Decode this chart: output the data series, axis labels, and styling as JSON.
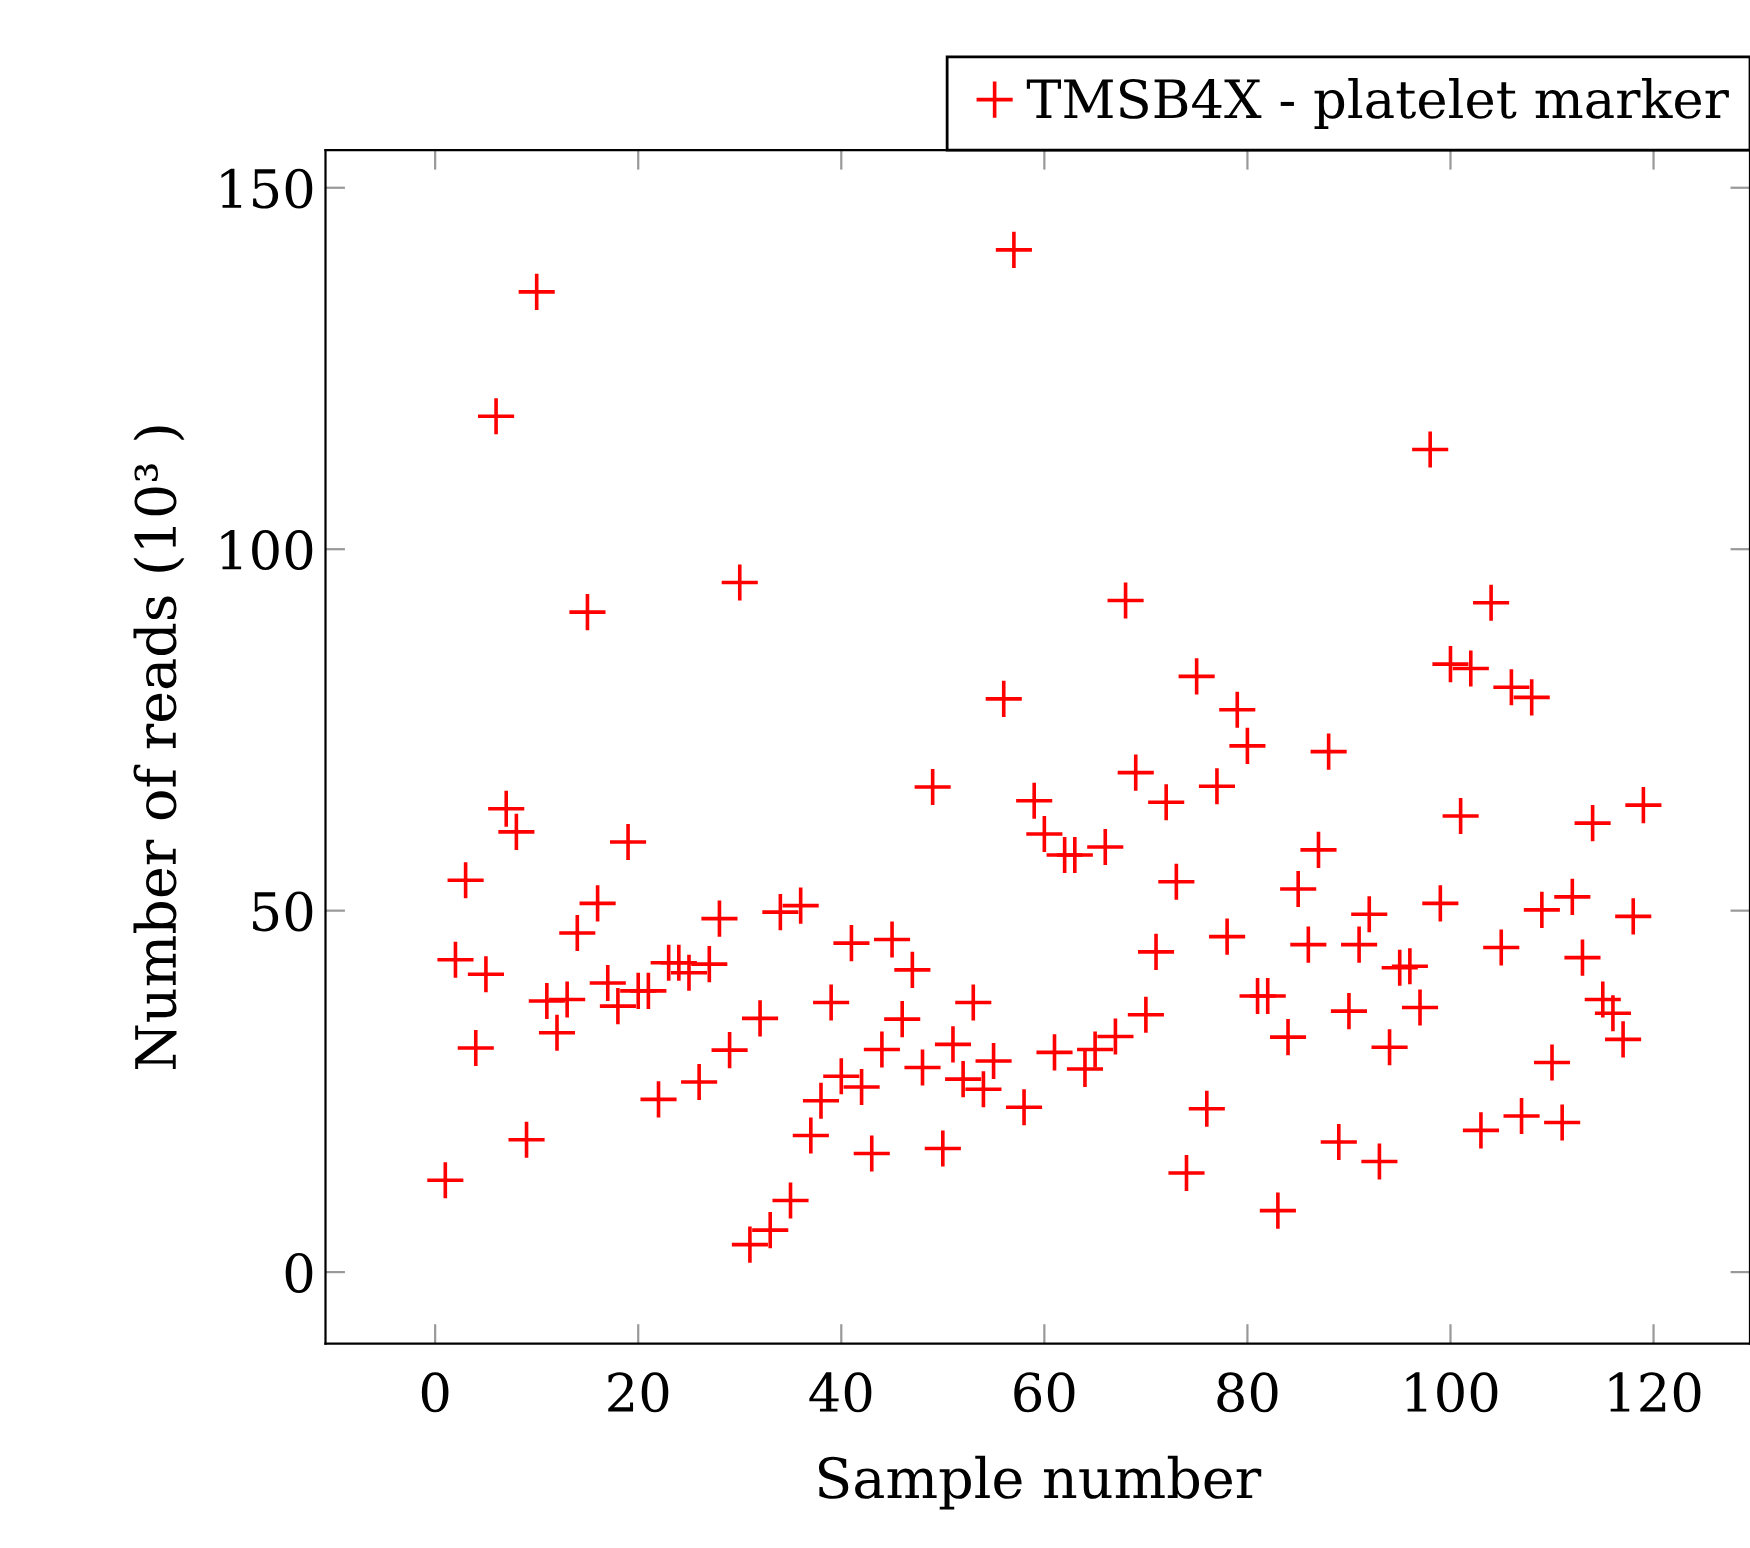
{
  "chart_data": {
    "type": "scatter",
    "xlabel": "Sample number",
    "ylabel": "Number of reads (10³ )",
    "x": [
      1,
      2,
      3,
      4,
      5,
      6,
      7,
      8,
      9,
      10,
      11,
      12,
      13,
      14,
      15,
      16,
      17,
      18,
      19,
      20,
      21,
      22,
      23,
      24,
      25,
      26,
      27,
      28,
      29,
      30,
      31,
      32,
      33,
      34,
      35,
      36,
      37,
      38,
      39,
      40,
      41,
      42,
      43,
      44,
      45,
      46,
      47,
      48,
      49,
      50,
      51,
      52,
      53,
      54,
      55,
      56,
      57,
      58,
      59,
      60,
      61,
      62,
      63,
      64,
      65,
      66,
      67,
      68,
      69,
      70,
      71,
      72,
      73,
      74,
      75,
      76,
      77,
      78,
      79,
      80,
      81,
      82,
      83,
      84,
      85,
      86,
      87,
      88,
      89,
      90,
      91,
      92,
      93,
      94,
      95,
      96,
      97,
      98,
      99,
      100,
      101,
      102,
      103,
      104,
      105,
      106,
      107,
      108,
      109,
      110,
      111,
      112,
      113,
      114,
      115,
      116,
      117,
      118,
      119
    ],
    "series": [
      {
        "name": "TMSB4X - platelet marker",
        "color": "#ff0000",
        "values": [
          12.7,
          43.2,
          54.2,
          31.0,
          41.2,
          118.4,
          64.1,
          60.9,
          18.3,
          135.6,
          37.5,
          33.1,
          37.7,
          46.9,
          91.3,
          51.0,
          40.0,
          36.8,
          59.5,
          38.9,
          38.9,
          23.9,
          42.8,
          42.8,
          41.4,
          26.3,
          42.6,
          48.9,
          30.7,
          95.4,
          3.8,
          35.1,
          5.8,
          49.8,
          9.9,
          50.7,
          18.9,
          23.7,
          37.3,
          27.1,
          45.5,
          25.6,
          16.4,
          30.8,
          46.0,
          35.0,
          41.8,
          28.3,
          67.1,
          17.1,
          31.5,
          26.7,
          37.3,
          25.3,
          29.2,
          79.3,
          141.4,
          22.8,
          65.2,
          60.6,
          30.4,
          57.7,
          57.7,
          28.1,
          30.8,
          58.8,
          32.6,
          92.9,
          69.1,
          35.6,
          44.3,
          65.0,
          54.0,
          13.7,
          82.4,
          22.6,
          67.2,
          46.4,
          77.8,
          72.8,
          38.2,
          38.2,
          8.5,
          32.5,
          53.0,
          45.3,
          58.4,
          72.0,
          18.0,
          36.1,
          45.3,
          49.5,
          15.3,
          31.1,
          42.1,
          42.3,
          36.6,
          113.8,
          51.0,
          84.1,
          63.1,
          83.5,
          19.6,
          92.6,
          44.9,
          80.9,
          21.6,
          79.5,
          50.1,
          29.0,
          20.7,
          51.9,
          43.5,
          62.1,
          37.7,
          35.8,
          32.2,
          49.2,
          64.6
        ]
      }
    ],
    "marker": "cross",
    "grid": false,
    "legend": "top right",
    "xlim": [
      -10.8,
      129.5
    ],
    "ylim": [
      -9.9,
      155.2
    ],
    "xticks": [
      0,
      20,
      40,
      60,
      80,
      100,
      120
    ],
    "yticks": [
      0,
      50,
      100,
      150
    ]
  }
}
